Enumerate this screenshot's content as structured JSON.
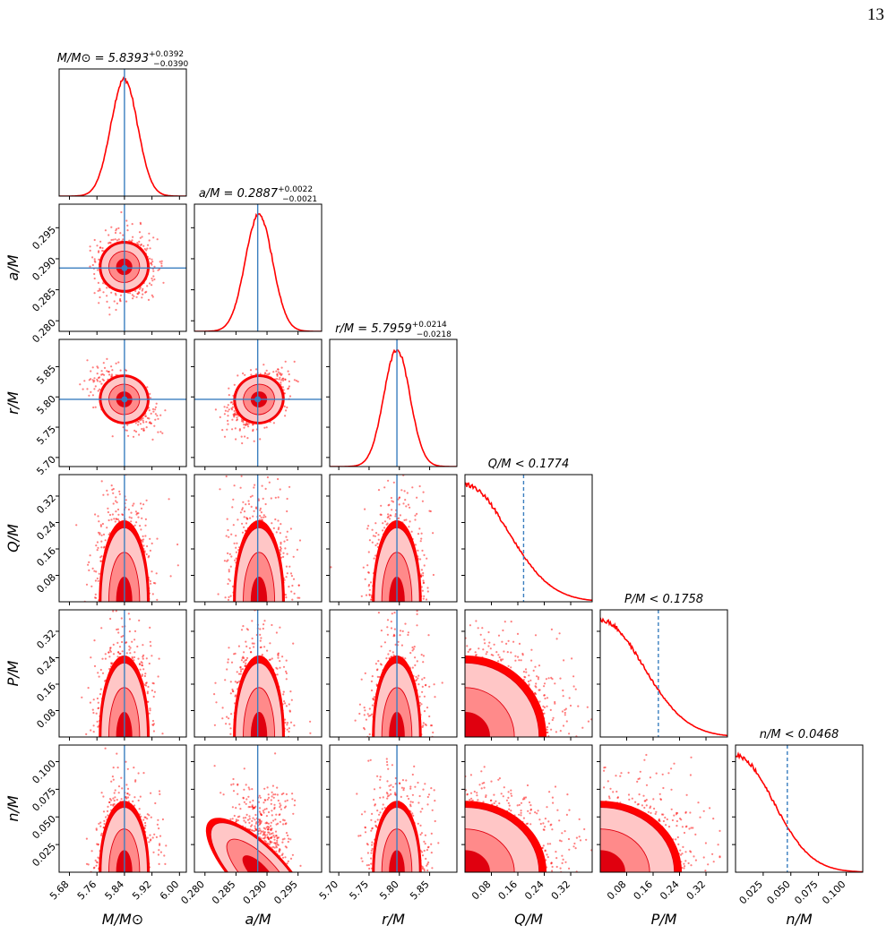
{
  "page_number": "13",
  "colors": {
    "density": "#ff0000",
    "contour_inner": "#e0000f",
    "contour_mid": "#ff8a8a",
    "contour_outer": "#ffc6c6",
    "truth_line": "#3a7ebf",
    "frame": "#000000"
  },
  "chart_data": {
    "type": "corner",
    "parameters": [
      {
        "key": "M",
        "axis_label": "M/M⊙",
        "title_text": "M/M⊙ = 5.8393",
        "title_sup": "+0.0392",
        "title_sub": "−0.0390",
        "median": 5.8393,
        "err_plus": 0.0392,
        "err_minus": 0.039,
        "range": [
          5.65,
          6.02
        ],
        "ticks": [
          5.68,
          5.76,
          5.84,
          5.92,
          6.0
        ],
        "tick_labels": [
          "5.68",
          "5.76",
          "5.84",
          "5.92",
          "6.00"
        ],
        "truth": 5.84,
        "truth_style": "solid",
        "marginal": "gaussian",
        "sigma": 0.039
      },
      {
        "key": "a",
        "axis_label": "a/M",
        "title_text": "a/M = 0.2887",
        "title_sup": "+0.0022",
        "title_sub": "−0.0021",
        "median": 0.2887,
        "err_plus": 0.0022,
        "err_minus": 0.0021,
        "range": [
          0.2783,
          0.2988
        ],
        "ticks": [
          0.28,
          0.285,
          0.29,
          0.295
        ],
        "tick_labels": [
          "0.280",
          "0.285",
          "0.290",
          "0.295"
        ],
        "truth": 0.2885,
        "truth_style": "solid",
        "marginal": "gaussian",
        "sigma": 0.0022
      },
      {
        "key": "r",
        "axis_label": "r/M",
        "title_text": "r/M = 5.7959",
        "title_sup": "+0.0214",
        "title_sub": "−0.0218",
        "median": 5.7959,
        "err_plus": 0.0214,
        "err_minus": 0.0218,
        "range": [
          5.685,
          5.895
        ],
        "ticks": [
          5.7,
          5.75,
          5.8,
          5.85
        ],
        "tick_labels": [
          "5.70",
          "5.75",
          "5.80",
          "5.85"
        ],
        "truth": 5.796,
        "truth_style": "solid",
        "marginal": "gaussian",
        "sigma": 0.0216
      },
      {
        "key": "Q",
        "axis_label": "Q/M",
        "title_text": "Q/M < 0.1774",
        "title_sup": "",
        "title_sub": "",
        "upper_limit": 0.1774,
        "range": [
          0.0,
          0.385
        ],
        "ticks": [
          0.08,
          0.16,
          0.24,
          0.32
        ],
        "tick_labels": [
          "0.08",
          "0.16",
          "0.24",
          "0.32"
        ],
        "truth": 0.1774,
        "truth_style": "dashed",
        "marginal": "half",
        "sigma": 0.13
      },
      {
        "key": "P",
        "axis_label": "P/M",
        "title_text": "P/M < 0.1758",
        "title_sup": "",
        "title_sub": "",
        "upper_limit": 0.1758,
        "range": [
          0.0,
          0.385
        ],
        "ticks": [
          0.08,
          0.16,
          0.24,
          0.32
        ],
        "tick_labels": [
          "0.08",
          "0.16",
          "0.24",
          "0.32"
        ],
        "truth": 0.1758,
        "truth_style": "dashed",
        "marginal": "half",
        "sigma": 0.13
      },
      {
        "key": "n",
        "axis_label": "n/M",
        "title_text": "n/M < 0.0468",
        "title_sup": "",
        "title_sub": "",
        "upper_limit": 0.0468,
        "range": [
          0.0,
          0.115
        ],
        "ticks": [
          0.025,
          0.05,
          0.075,
          0.1
        ],
        "tick_labels": [
          "0.025",
          "0.050",
          "0.075",
          "0.100"
        ],
        "truth": 0.0468,
        "truth_style": "dashed",
        "marginal": "half",
        "sigma": 0.034
      }
    ],
    "correlations": {
      "a-M": 0.0,
      "r-M": -0.55,
      "r-a": 0.5,
      "Q-M": 0.0,
      "Q-a": 0.0,
      "Q-r": 0.0,
      "P-M": 0.0,
      "P-a": 0.0,
      "P-r": 0.0,
      "P-Q": 0.0,
      "n-M": 0.0,
      "n-a": 0.35,
      "n-r": 0.0,
      "n-Q": 0.0,
      "n-P": 0.0
    },
    "contour_levels_sigma": [
      0.5,
      1.0,
      1.5,
      2.0
    ]
  }
}
